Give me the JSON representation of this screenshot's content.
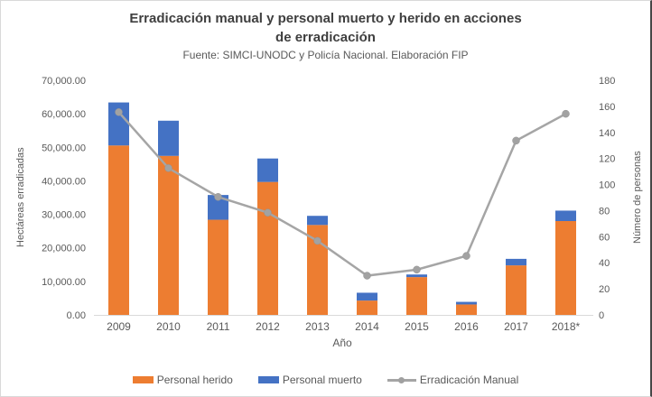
{
  "chart_data": {
    "type": "bar",
    "subtype": "stacked-column-with-line-combo",
    "title": "Erradicación manual y personal muerto y herido en acciones de erradicación",
    "title_lines": [
      "Erradicación manual y personal muerto y herido en acciones",
      "de erradicación"
    ],
    "subtitle": "Fuente: SIMCI-UNODC y Policía Nacional. Elaboración FIP",
    "xlabel": "Año",
    "ylabel_left": "Hectáreas erradicadas",
    "ylabel_right": "Número de personas",
    "categories": [
      "2009",
      "2010",
      "2011",
      "2012",
      "2013",
      "2014",
      "2015",
      "2016",
      "2017",
      "2018*"
    ],
    "series": [
      {
        "name": "Personal herido",
        "type": "bar",
        "stack": "personas",
        "axis": "right",
        "color": "#ED7D31",
        "values": [
          130,
          122,
          73,
          102,
          69,
          11,
          29,
          8,
          38,
          72
        ]
      },
      {
        "name": "Personal muerto",
        "type": "bar",
        "stack": "personas",
        "axis": "right",
        "color": "#4472C4",
        "values": [
          33,
          27,
          19,
          18,
          7,
          6,
          2,
          2,
          5,
          8
        ]
      },
      {
        "name": "Erradicación Manual",
        "type": "line",
        "axis": "left",
        "color": "#A5A5A5",
        "marker": "circle",
        "values": [
          60500,
          43800,
          35200,
          30500,
          22100,
          11700,
          13500,
          17600,
          52000,
          60000
        ]
      }
    ],
    "axes": {
      "left": {
        "min": 0,
        "max": 70000,
        "tick_labels": [
          "0.00",
          "10,000.00",
          "20,000.00",
          "30,000.00",
          "40,000.00",
          "50,000.00",
          "60,000.00",
          "70,000.00"
        ]
      },
      "right": {
        "min": 0,
        "max": 180,
        "tick_labels": [
          "0",
          "20",
          "40",
          "60",
          "80",
          "100",
          "120",
          "140",
          "160",
          "180"
        ]
      }
    },
    "grid": false,
    "legend_position": "bottom",
    "text_color": "#595959",
    "axis_line_color": "#D9D9D9"
  }
}
